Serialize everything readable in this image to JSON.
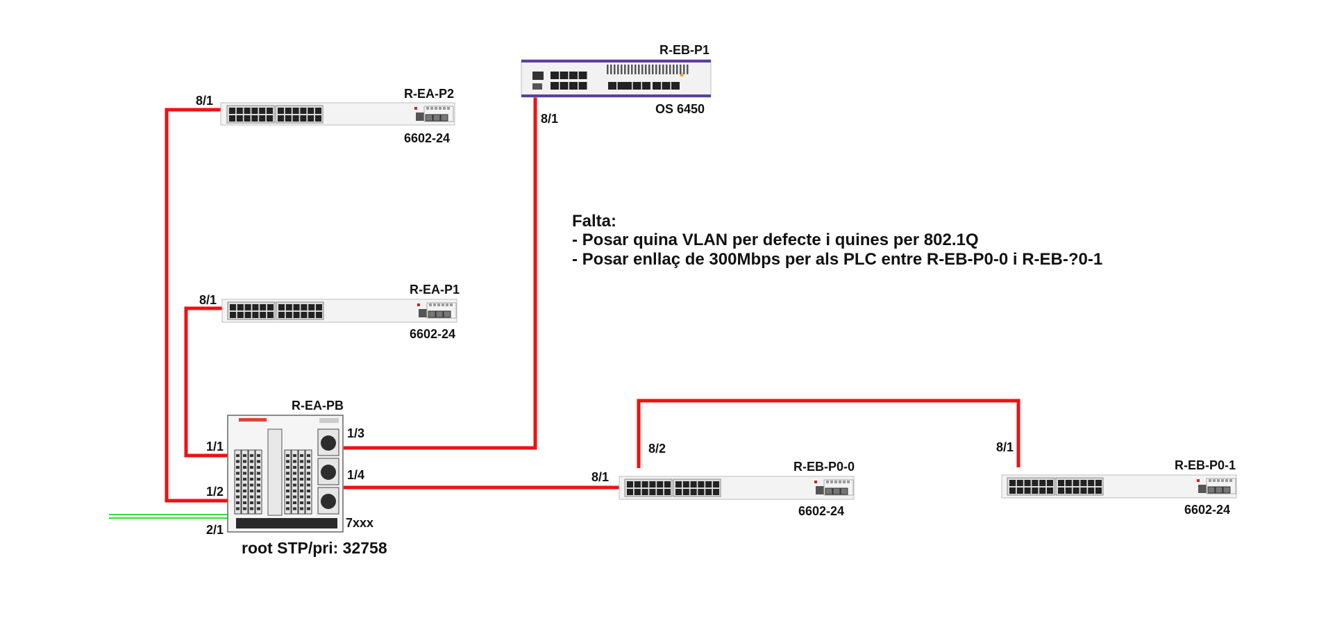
{
  "colors": {
    "link": "#ee1111",
    "uplink": "#33dd33",
    "chassis": "#f3f3f3",
    "port": "#222222",
    "brand_purple": "#5b3fa0"
  },
  "devices": {
    "r_ea_p2": {
      "name": "R-EA-P2",
      "model": "6602-24",
      "port": "8/1"
    },
    "r_ea_p1": {
      "name": "R-EA-P1",
      "model": "6602-24",
      "port": "8/1"
    },
    "r_eb_p1": {
      "name": "R-EB-P1",
      "model": "OS 6450",
      "port": "8/1"
    },
    "r_ea_pb": {
      "name": "R-EA-PB",
      "model": "7xxx",
      "root": "root STP/pri: 32758",
      "ports": {
        "p11": "1/1",
        "p12": "1/2",
        "p13": "1/3",
        "p14": "1/4",
        "p21": "2/1"
      }
    },
    "r_eb_p00": {
      "name": "R-EB-P0-0",
      "model": "6602-24",
      "port_in": "8/1",
      "port_out": "8/2"
    },
    "r_eb_p01": {
      "name": "R-EB-P0-1",
      "model": "6602-24",
      "port": "8/1"
    }
  },
  "notes": {
    "title": "Falta:",
    "line1": "- Posar quina VLAN per defecte i quines per 802.1Q",
    "line2": "- Posar enllaç de 300Mbps per als PLC entre R-EB-P0-0 i R-EB-?0-1"
  }
}
